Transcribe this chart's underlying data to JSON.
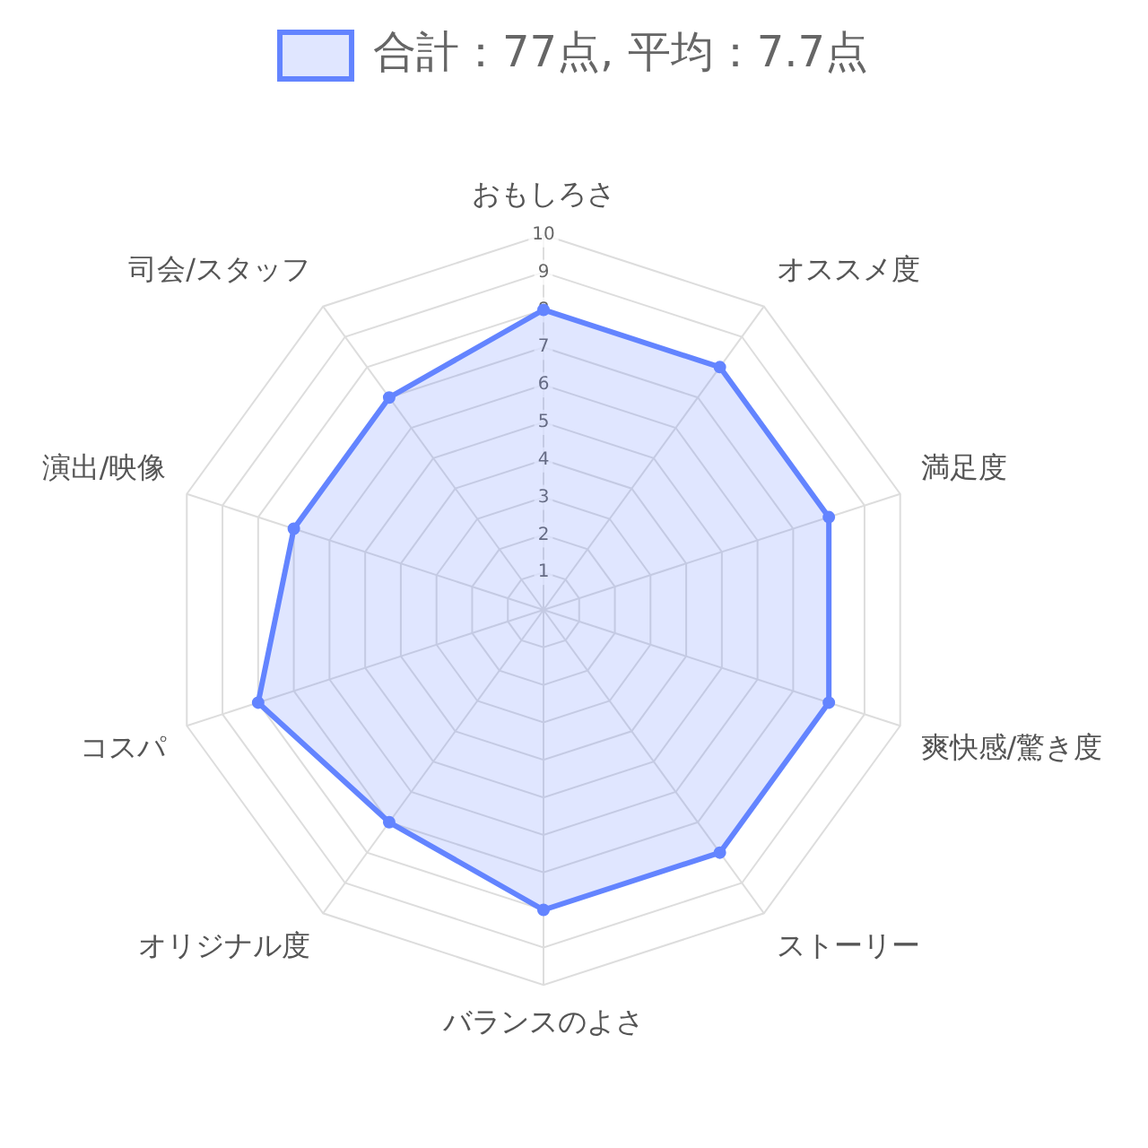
{
  "chart_data": {
    "type": "radar",
    "categories": [
      "おもしろさ",
      "オススメ度",
      "満足度",
      "爽快感/驚き度",
      "ストーリー",
      "バランスのよさ",
      "オリジナル度",
      "コスパ",
      "演出/映像",
      "司会/スタッフ"
    ],
    "series": [
      {
        "name": "合計：77点, 平均：7.7点",
        "color": "#6384ff",
        "values": [
          8,
          8,
          8,
          8,
          8,
          8,
          7,
          8,
          7,
          7
        ]
      }
    ],
    "ylim": [
      0,
      10
    ],
    "yticks": [
      1,
      2,
      3,
      4,
      5,
      6,
      7,
      8,
      9,
      10
    ],
    "grid": true,
    "legend": "top",
    "marker": "circle"
  }
}
